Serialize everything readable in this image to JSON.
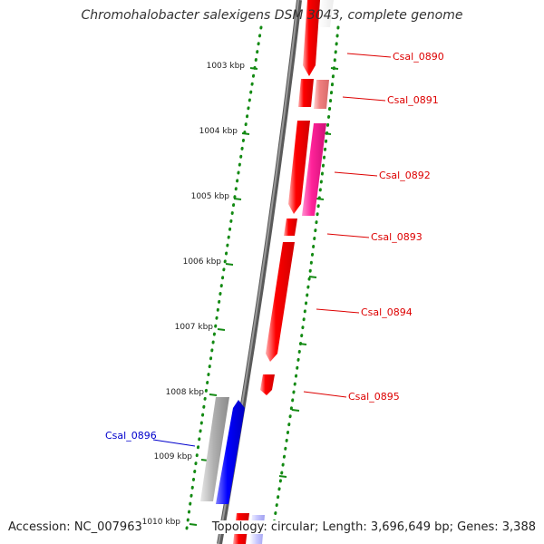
{
  "title": "Chromohalobacter salexigens DSM 3043, complete genome",
  "footer": {
    "accession": "Accession: NC_007963",
    "summary": "Topology: circular; Length: 3,696,649 bp; Genes: 3,388"
  },
  "ticks": [
    {
      "label": "1003 kbp"
    },
    {
      "label": "1004 kbp"
    },
    {
      "label": "1005 kbp"
    },
    {
      "label": "1006 kbp"
    },
    {
      "label": "1007 kbp"
    },
    {
      "label": "1008 kbp"
    },
    {
      "label": "1009 kbp"
    },
    {
      "label": "1010 kbp"
    }
  ],
  "genes": [
    {
      "locus": "Csal_0890",
      "strand": "forward"
    },
    {
      "locus": "Csal_0891",
      "strand": "forward"
    },
    {
      "locus": "Csal_0892",
      "strand": "forward"
    },
    {
      "locus": "Csal_0893",
      "strand": "forward"
    },
    {
      "locus": "Csal_0894",
      "strand": "forward"
    },
    {
      "locus": "Csal_0895",
      "strand": "forward"
    },
    {
      "locus": "Csal_0896",
      "strand": "reverse"
    }
  ],
  "colors": {
    "backbone": "#7a7a7a",
    "forward_cds": "#ff0000",
    "forward_label": "#dd0000",
    "reverse_cds": "#0000ff",
    "reverse_label": "#0000cc",
    "gene_pink": "#ff2299",
    "gene_salmon": "#f08080",
    "gene_gray": "#a8a8a8",
    "tick_marks": "#138a13"
  }
}
